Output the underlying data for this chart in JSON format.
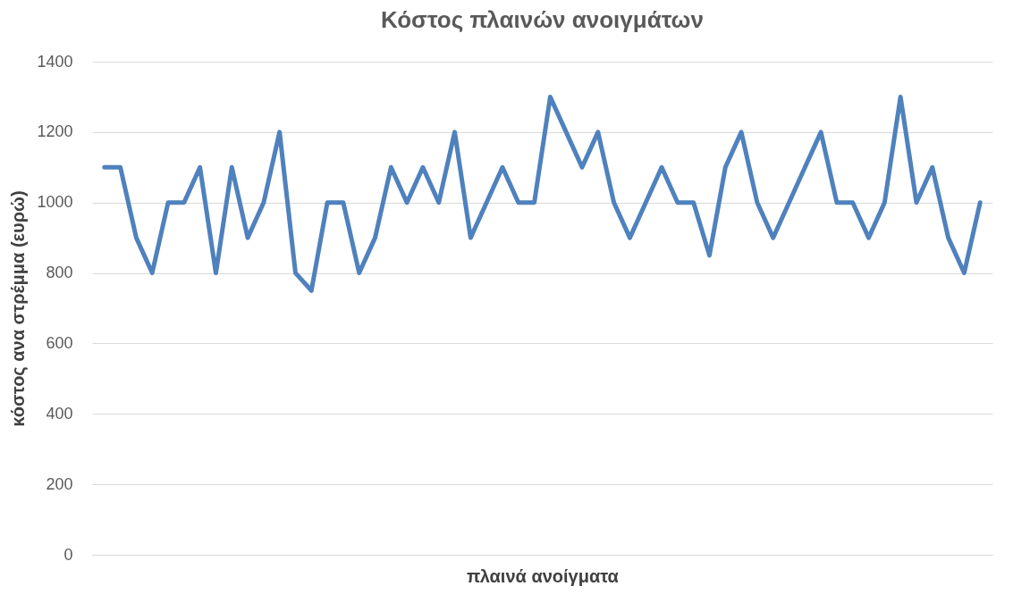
{
  "chart_data": {
    "type": "line",
    "title": "Κόστος πλαινών ανοιγμάτων",
    "xlabel": "πλαινά  ανοίγματα",
    "ylabel": "κόστος ανα στρέμμα (ευρώ)",
    "categories": [
      null,
      null,
      null,
      null,
      null,
      null,
      null,
      null,
      null,
      null,
      null,
      null,
      null,
      null,
      null,
      null,
      null,
      null,
      null,
      null,
      null,
      null,
      null,
      null,
      null,
      null,
      null,
      null,
      null,
      null,
      null,
      null,
      null,
      null,
      null,
      null,
      null,
      null,
      null,
      null,
      null,
      null,
      null,
      null,
      null,
      null,
      null,
      null,
      null,
      null,
      null,
      null,
      null,
      null,
      null,
      null
    ],
    "series": [
      {
        "color": "#4f81bd",
        "values": [
          1100,
          1100,
          900,
          800,
          1000,
          1000,
          1100,
          800,
          1100,
          900,
          1000,
          1200,
          800,
          750,
          1000,
          1000,
          800,
          900,
          1100,
          1000,
          1100,
          1000,
          1200,
          900,
          1000,
          1100,
          1000,
          1000,
          1300,
          1200,
          1100,
          1200,
          1000,
          900,
          1000,
          1100,
          1000,
          1000,
          850,
          1100,
          1200,
          1000,
          900,
          1000,
          1100,
          1200,
          1000,
          1000,
          900,
          1000,
          1300,
          1000,
          1100,
          900,
          800,
          1000
        ]
      }
    ],
    "ylim": [
      0,
      1400
    ],
    "yticks": [
      0,
      200,
      400,
      600,
      800,
      1000,
      1200,
      1400
    ],
    "grid": "y",
    "tick_labels": "y",
    "marker": "none",
    "line_style": "solid"
  }
}
